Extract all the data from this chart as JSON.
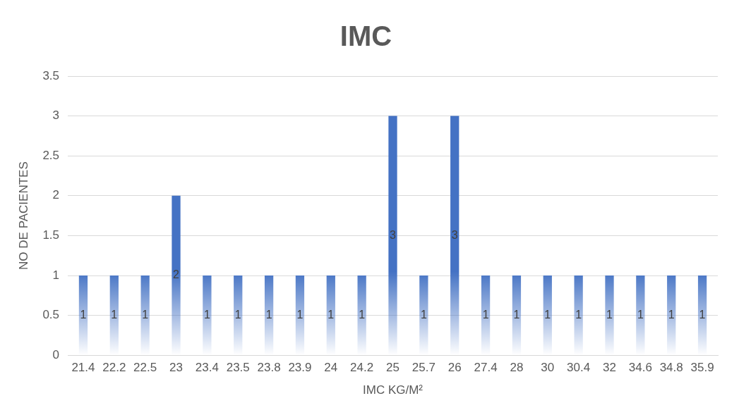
{
  "chart_data": {
    "type": "bar",
    "title": "IMC",
    "xlabel": "IMC KG/M²",
    "ylabel": "NO DE PACIENTES",
    "categories": [
      "21.4",
      "22.2",
      "22.5",
      "23",
      "23.4",
      "23.5",
      "23.8",
      "23.9",
      "24",
      "24.2",
      "25",
      "25.7",
      "26",
      "27.4",
      "28",
      "30",
      "30.4",
      "32",
      "34.6",
      "34.8",
      "35.9"
    ],
    "values": [
      1,
      1,
      1,
      2,
      1,
      1,
      1,
      1,
      1,
      1,
      3,
      1,
      3,
      1,
      1,
      1,
      1,
      1,
      1,
      1,
      1
    ],
    "color": "#4472c4",
    "ylim": [
      0,
      3.5
    ],
    "yticks": [
      0,
      0.5,
      1,
      1.5,
      2,
      2.5,
      3,
      3.5
    ],
    "grid": "y",
    "legend": false,
    "data_labels": true
  }
}
